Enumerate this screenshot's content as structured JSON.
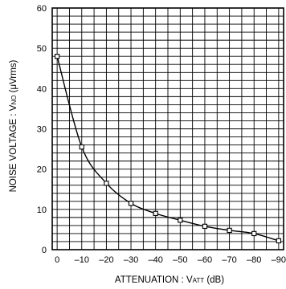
{
  "chart_data": {
    "type": "line",
    "title": "",
    "xlabel": {
      "prefix": "ATTENUATION : V",
      "subscript": "ATT",
      "suffix": " (dB)"
    },
    "ylabel": {
      "prefix": "NOISE VOLTAGE : V",
      "subscript": "NO",
      "suffix": " (μVrms)"
    },
    "x_ticks": [
      0,
      -10,
      -20,
      -30,
      -40,
      -50,
      -60,
      -70,
      -80,
      -90
    ],
    "x_tick_labels": [
      "0",
      "–10",
      "–20",
      "–30",
      "–40",
      "–50",
      "–60",
      "–70",
      "–80",
      "–90"
    ],
    "y_ticks": [
      0,
      10,
      20,
      30,
      40,
      50,
      60
    ],
    "y_tick_labels": [
      "0",
      "10",
      "20",
      "30",
      "40",
      "50",
      "60"
    ],
    "xlim": [
      2,
      -92
    ],
    "ylim": [
      0,
      60
    ],
    "grid": true,
    "grid_minor": {
      "x_step": 5,
      "y_step": 2
    },
    "colors": {
      "line": "#000000",
      "grid": "#000000",
      "marker_fill": "#ffffff"
    },
    "series": [
      {
        "x": [
          0,
          -10,
          -20,
          -30,
          -40,
          -50,
          -60,
          -70,
          -80,
          -90
        ],
        "y": [
          48,
          25.5,
          16.5,
          11.5,
          9,
          7.3,
          5.8,
          4.8,
          4,
          2.2
        ],
        "marker": "square"
      }
    ]
  }
}
